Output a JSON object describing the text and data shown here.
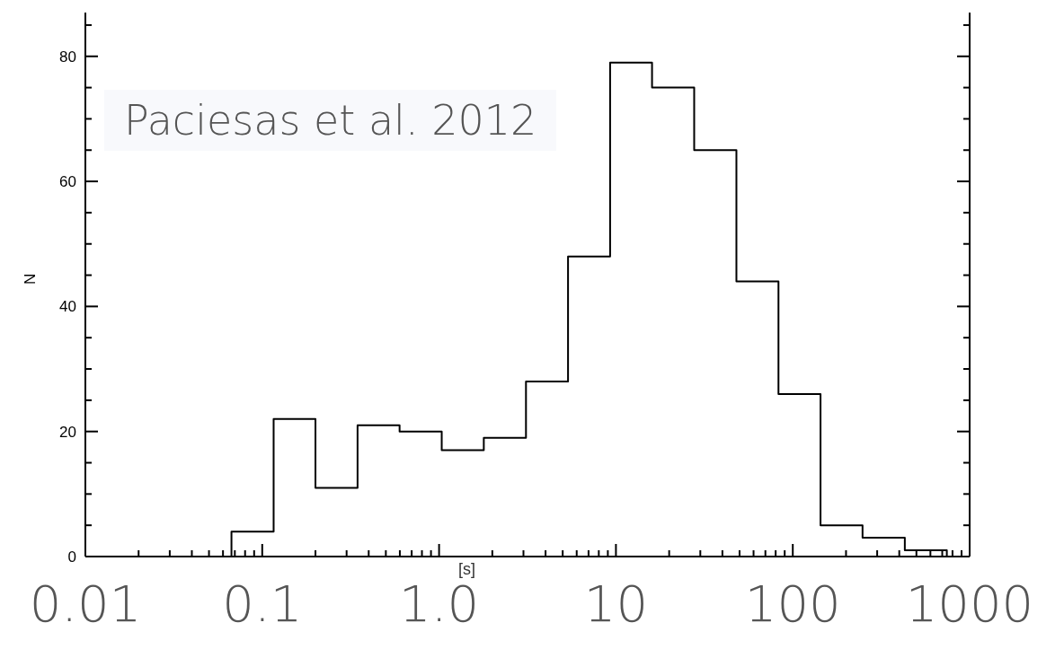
{
  "chart_data": {
    "type": "histogram",
    "bins": [
      0.067,
      0.116,
      0.2,
      0.346,
      0.598,
      1.035,
      1.79,
      3.1,
      5.36,
      9.27,
      16,
      27.7,
      48,
      83,
      143.5,
      248,
      430,
      743
    ],
    "values": [
      4,
      22,
      11,
      21,
      20,
      17,
      19,
      28,
      48,
      79,
      75,
      65,
      44,
      26,
      5,
      3,
      1
    ],
    "color": "#000000",
    "log": "x",
    "xlim": [
      0.01,
      1000
    ],
    "xticks": [
      {
        "value": 0.01,
        "label": "0.01"
      },
      {
        "value": 0.02,
        "label": null
      },
      {
        "value": 0.03,
        "label": null
      },
      {
        "value": 0.04,
        "label": null
      },
      {
        "value": 0.05,
        "label": null
      },
      {
        "value": 0.06,
        "label": null
      },
      {
        "value": 0.07,
        "label": null
      },
      {
        "value": 0.08,
        "label": null
      },
      {
        "value": 0.09,
        "label": null
      },
      {
        "value": 0.1,
        "label": "0.1"
      },
      {
        "value": 0.2,
        "label": null
      },
      {
        "value": 0.3,
        "label": null
      },
      {
        "value": 0.4,
        "label": null
      },
      {
        "value": 0.5,
        "label": null
      },
      {
        "value": 0.6,
        "label": null
      },
      {
        "value": 0.7,
        "label": null
      },
      {
        "value": 0.8,
        "label": null
      },
      {
        "value": 0.9,
        "label": null
      },
      {
        "value": 1,
        "label": "1.0"
      },
      {
        "value": 2,
        "label": null
      },
      {
        "value": 3,
        "label": null
      },
      {
        "value": 4,
        "label": null
      },
      {
        "value": 5,
        "label": null
      },
      {
        "value": 6,
        "label": null
      },
      {
        "value": 7,
        "label": null
      },
      {
        "value": 8,
        "label": null
      },
      {
        "value": 9,
        "label": null
      },
      {
        "value": 10,
        "label": "10"
      },
      {
        "value": 20,
        "label": null
      },
      {
        "value": 30,
        "label": null
      },
      {
        "value": 40,
        "label": null
      },
      {
        "value": 50,
        "label": null
      },
      {
        "value": 60,
        "label": null
      },
      {
        "value": 70,
        "label": null
      },
      {
        "value": 80,
        "label": null
      },
      {
        "value": 90,
        "label": null
      },
      {
        "value": 100,
        "label": "100"
      },
      {
        "value": 200,
        "label": null
      },
      {
        "value": 300,
        "label": null
      },
      {
        "value": 400,
        "label": null
      },
      {
        "value": 500,
        "label": null
      },
      {
        "value": 600,
        "label": null
      },
      {
        "value": 700,
        "label": null
      },
      {
        "value": 800,
        "label": null
      },
      {
        "value": 900,
        "label": null
      },
      {
        "value": 1000,
        "label": "1000"
      }
    ],
    "ylim": [
      0,
      87
    ],
    "yticks": [
      0,
      {
        "value": 5,
        "label": null
      },
      {
        "value": 10,
        "label": null
      },
      {
        "value": 15,
        "label": null
      },
      20,
      {
        "value": 25,
        "label": null
      },
      {
        "value": 30,
        "label": null
      },
      {
        "value": 35,
        "label": null
      },
      40,
      {
        "value": 45,
        "label": null
      },
      {
        "value": 50,
        "label": null
      },
      {
        "value": 55,
        "label": null
      },
      60,
      {
        "value": 65,
        "label": null
      },
      {
        "value": 70,
        "label": null
      },
      {
        "value": 75,
        "label": null
      },
      80,
      {
        "value": 85,
        "label": null
      }
    ],
    "xlabel": "[s]",
    "ylabel": "N",
    "annotations": [
      "Paciesas et al. 2012"
    ]
  }
}
